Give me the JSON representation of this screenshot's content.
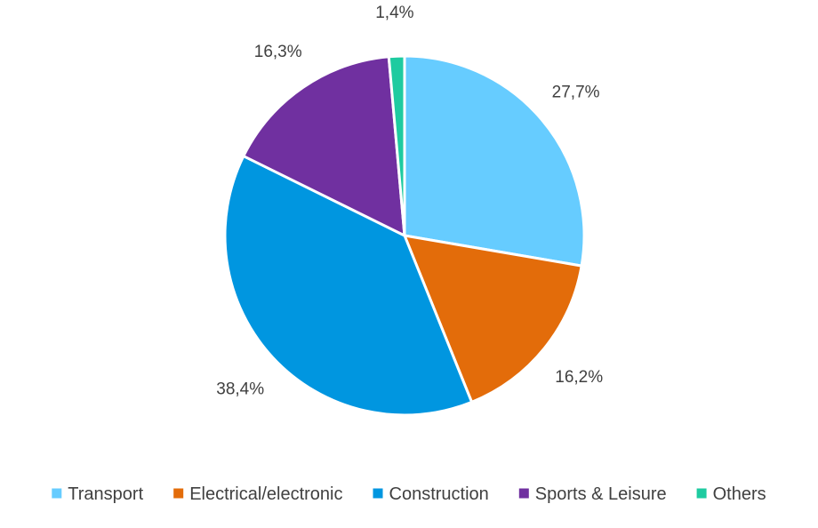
{
  "chart_data": {
    "type": "pie",
    "title": "",
    "categories": [
      "Transport",
      "Electrical/electronic",
      "Construction",
      "Sports & Leisure",
      "Others"
    ],
    "values": [
      27.7,
      16.2,
      38.4,
      16.3,
      1.4
    ],
    "data_labels": [
      "27,7%",
      "16,2%",
      "38,4%",
      "16,3%",
      "1,4%"
    ],
    "colors": [
      "#66CCFF",
      "#E36C0A",
      "#0096E0",
      "#7030A0",
      "#1ECBA0"
    ],
    "start_angle_deg": 0,
    "direction": "clockwise",
    "legend_position": "bottom"
  }
}
